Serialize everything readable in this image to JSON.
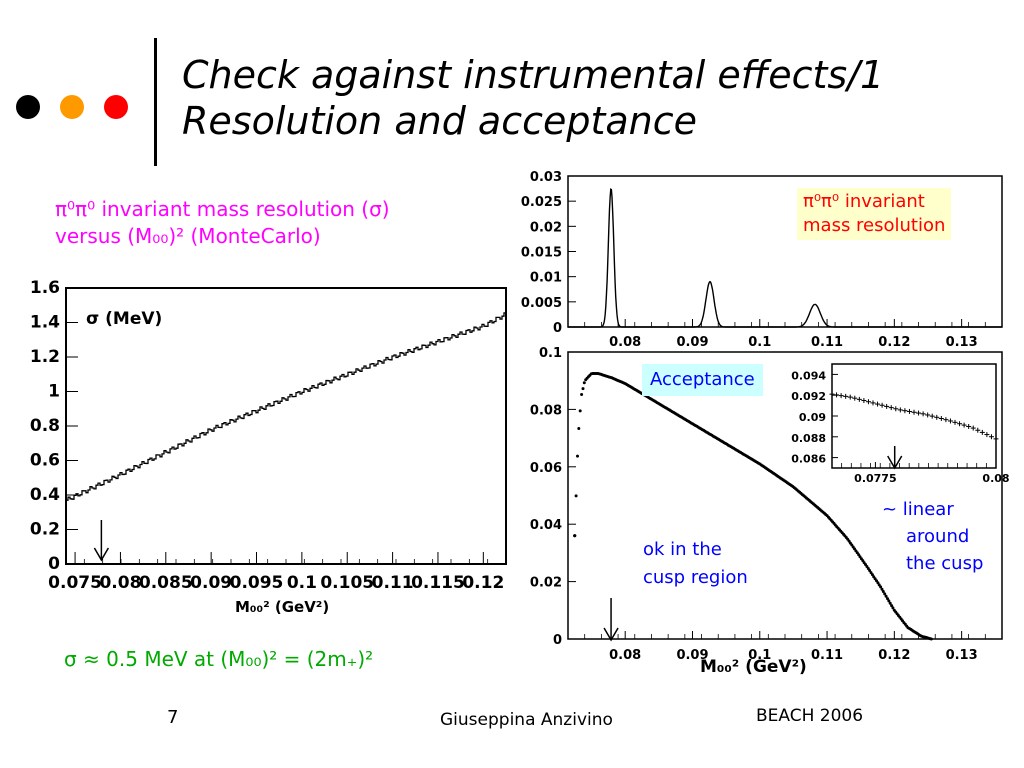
{
  "slide": {
    "title_line1": "Check against instrumental effects/1",
    "title_line2": "Resolution and acceptance",
    "dot_colors": [
      "#000000",
      "#ff9900",
      "#ff0000"
    ]
  },
  "captions": {
    "left_line1_sym": "π⁰π⁰",
    "left_line1_text": " invariant mass resolution (σ)",
    "left_line2": "versus (M₀₀)² (MonteCarlo)",
    "left_color": "#ff00ff",
    "top_right_line1": "π⁰π⁰ invariant",
    "top_right_line2": "mass resolution",
    "top_right_color": "#ff0000",
    "acceptance": "Acceptance",
    "acceptance_color": "#0000ff",
    "ok_line1": "ok in the",
    "ok_line2": "cusp region",
    "linear_line1": "~ linear",
    "linear_line2": "around",
    "linear_line3": "the cusp",
    "blue": "#0000ff",
    "formula": "σ ≈ 0.5 MeV at (M₀₀)² = (2m₊)²",
    "formula_color": "#00aa00"
  },
  "footer": {
    "page": "7",
    "author": "Giuseppina Anzivino",
    "event": "BEACH 2006"
  },
  "chart_data": [
    {
      "type": "line",
      "id": "sigma_vs_m00sq",
      "ylabel": "σ (MeV)",
      "xlabel": "M₀₀² (GeV²)",
      "xlim": [
        0.074,
        0.1225
      ],
      "ylim": [
        0,
        1.6
      ],
      "xticks": [
        "0.075",
        "0.08",
        "0.085",
        "0.09",
        "0.095",
        "0.1",
        "0.105",
        "0.11",
        "0.115",
        "0.12"
      ],
      "yticks": [
        "0",
        "0.2",
        "0.4",
        "0.6",
        "0.8",
        "1",
        "1.2",
        "1.4",
        "1.6"
      ],
      "x": [
        0.074,
        0.076,
        0.078,
        0.08,
        0.085,
        0.09,
        0.095,
        0.1,
        0.105,
        0.11,
        0.115,
        0.12,
        0.1225
      ],
      "y": [
        0.37,
        0.42,
        0.47,
        0.52,
        0.65,
        0.78,
        0.89,
        1.0,
        1.1,
        1.2,
        1.29,
        1.38,
        1.45
      ],
      "arrow_x": 0.0779
    },
    {
      "type": "line",
      "id": "resolution_peaks",
      "xlim": [
        0.0715,
        0.136
      ],
      "ylim": [
        0,
        0.03
      ],
      "xticks": [
        "0.08",
        "0.09",
        "0.1",
        "0.11",
        "0.12",
        "0.13"
      ],
      "yticks": [
        "0",
        "0.005",
        "0.01",
        "0.015",
        "0.02",
        "0.025",
        "0.03"
      ],
      "peaks": [
        {
          "x": 0.0779,
          "height": 0.0275,
          "width": 0.0004
        },
        {
          "x": 0.0926,
          "height": 0.009,
          "width": 0.0006
        },
        {
          "x": 0.1082,
          "height": 0.0045,
          "width": 0.0008
        }
      ]
    },
    {
      "type": "scatter",
      "id": "acceptance",
      "xlabel": "M₀₀² (GeV²)",
      "xlim": [
        0.0715,
        0.136
      ],
      "ylim": [
        0,
        0.1
      ],
      "xticks": [
        "0.08",
        "0.09",
        "0.1",
        "0.11",
        "0.12",
        "0.13"
      ],
      "yticks": [
        "0",
        "0.02",
        "0.04",
        "0.06",
        "0.08",
        "0.1"
      ],
      "x": [
        0.0725,
        0.073,
        0.0735,
        0.074,
        0.075,
        0.076,
        0.078,
        0.08,
        0.085,
        0.09,
        0.095,
        0.1,
        0.105,
        0.11,
        0.113,
        0.116,
        0.118,
        0.12,
        0.122,
        0.124,
        0.1255
      ],
      "y": [
        0.036,
        0.07,
        0.085,
        0.09,
        0.0925,
        0.0925,
        0.091,
        0.089,
        0.082,
        0.075,
        0.068,
        0.061,
        0.053,
        0.043,
        0.035,
        0.025,
        0.018,
        0.01,
        0.004,
        0.001,
        0
      ],
      "arrow_x": 0.0779
    },
    {
      "type": "line",
      "id": "acceptance_inset",
      "xlim": [
        0.0766,
        0.08
      ],
      "ylim": [
        0.085,
        0.095
      ],
      "xticks": [
        "0.0775",
        "0.08"
      ],
      "yticks": [
        "0.086",
        "0.088",
        "0.09",
        "0.092",
        "0.094"
      ],
      "x": [
        0.0766,
        0.077,
        0.0775,
        0.078,
        0.0785,
        0.079,
        0.0795,
        0.08
      ],
      "y": [
        0.0921,
        0.0918,
        0.0912,
        0.0906,
        0.0902,
        0.0896,
        0.0889,
        0.0878
      ],
      "arrow_x": 0.0779
    }
  ]
}
